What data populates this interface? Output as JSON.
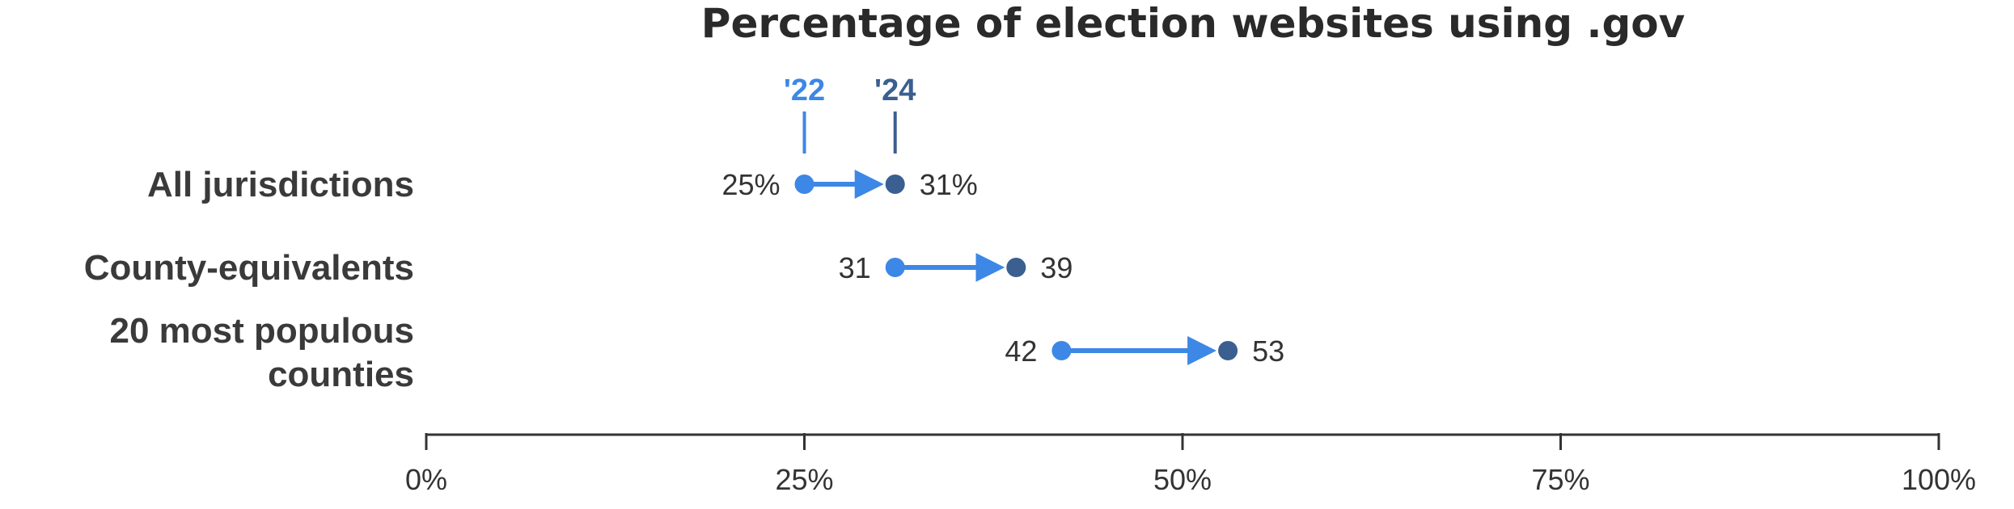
{
  "chart_data": {
    "type": "dumbbell",
    "title": "Percentage of election websites using .gov",
    "categories": [
      "All jurisdictions",
      "County-equivalents",
      "20 most populous counties"
    ],
    "series": [
      {
        "name": "'22",
        "values": [
          25,
          31,
          42
        ],
        "labels": [
          "25%",
          "31",
          "42"
        ]
      },
      {
        "name": "'24",
        "values": [
          31,
          39,
          53
        ],
        "labels": [
          "31%",
          "39",
          "53"
        ]
      }
    ],
    "xlim": [
      0,
      100
    ],
    "xticks": [
      0,
      25,
      50,
      75,
      100
    ],
    "xtick_labels": [
      "0%",
      "25%",
      "50%",
      "75%",
      "100%"
    ],
    "grid": false,
    "legend": "annotated above first row",
    "colors": {
      "start": "#3d87e6",
      "end": "#3a5f90",
      "axis": "#333333"
    }
  }
}
